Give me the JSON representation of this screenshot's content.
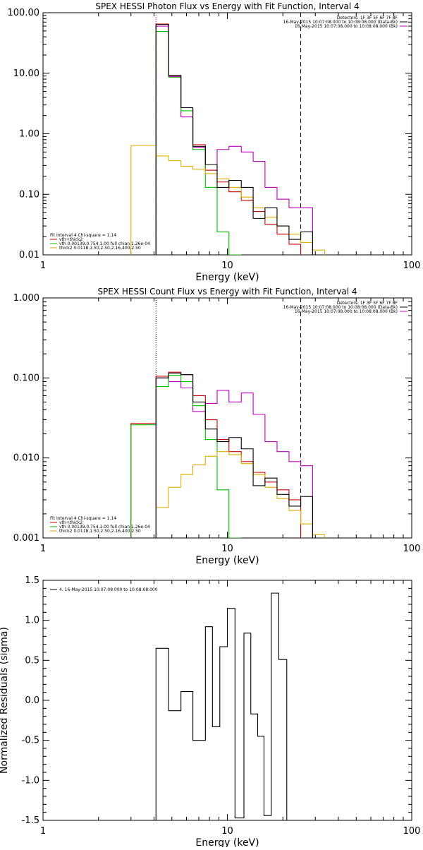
{
  "chart_data": [
    {
      "type": "line",
      "title": "SPEX HESSI Photon Flux vs Energy with Fit Function, Interval 4",
      "xlabel": "Energy (keV)",
      "ylabel": "",
      "xscale": "log",
      "yscale": "log",
      "xlim": [
        1,
        100
      ],
      "ylim": [
        0.01,
        100
      ],
      "xticks": [
        "1",
        "10",
        "100"
      ],
      "yticks": [
        "0.01",
        "0.10",
        "1.00",
        "10.00",
        "100.00"
      ],
      "ytick_values": [
        0.01,
        0.1,
        1,
        10,
        100
      ],
      "vlines": [
        {
          "x": 4.1,
          "style": "dotted",
          "color": "#c000c0"
        },
        {
          "x": 25.0,
          "style": "dashed",
          "color": "#000000"
        }
      ],
      "legend_top": [
        {
          "text": "Detectors: 1F 3F 5F 6F 7F 8F",
          "color": ""
        },
        {
          "text": "16-May-2015 10:07:08.000 to 10:08:08.000 (Data-Bk)",
          "color": "#000000"
        },
        {
          "text": "16-May-2015 10:07:08.000 to 10:08:08.000 (Bk)",
          "color": "#c000c0"
        }
      ],
      "legend_bottom": [
        {
          "text": "Fit Interval 4   Chi-square = 1.14",
          "color": ""
        },
        {
          "text": "vth+thick2",
          "color": "#d00000"
        },
        {
          "text": "vth 0.00139,0.754,1.00  full chian 1.26e-04",
          "color": "#00c000"
        },
        {
          "text": "thick2 0.0118,1.50,2.50,2.16,400,2.50",
          "color": "#d4a800"
        }
      ],
      "edges": [
        3.0,
        4.1,
        4.8,
        5.6,
        6.5,
        7.6,
        8.8,
        10.2,
        11.9,
        13.8,
        16.0,
        18.6,
        21.6,
        25.0,
        29.0,
        33.7,
        39.1
      ],
      "series": [
        {
          "name": "",
          "color": "#c000c0",
          "values": [
            null,
            60,
            8.8,
            1.9,
            0.6,
            0.25,
            0.55,
            0.62,
            0.5,
            0.35,
            0.13,
            0.083,
            0.06,
            0.06,
            null,
            null
          ]
        },
        {
          "name": "",
          "color": "#d00000",
          "values": [
            null,
            65,
            9.1,
            2.7,
            0.66,
            0.25,
            0.16,
            0.11,
            0.08,
            0.052,
            0.032,
            0.022,
            0.015,
            null,
            null,
            null
          ]
        },
        {
          "name": "",
          "color": "#00c000",
          "values": [
            null,
            49,
            8.6,
            2.4,
            0.55,
            0.13,
            0.024,
            0.01,
            null,
            null,
            null,
            null,
            null,
            null,
            null,
            null
          ]
        },
        {
          "name": "",
          "color": "#e0b000",
          "values": [
            0.64,
            0.43,
            0.36,
            0.29,
            0.26,
            0.22,
            0.18,
            0.13,
            0.09,
            0.06,
            0.042,
            0.03,
            0.022,
            0.016,
            0.012,
            null
          ]
        },
        {
          "name": "",
          "color": "#000000",
          "values": [
            null,
            64,
            9.2,
            2.7,
            0.62,
            0.31,
            0.13,
            0.17,
            0.13,
            0.04,
            0.06,
            0.03,
            0.018,
            0.024,
            null,
            null
          ]
        }
      ]
    },
    {
      "type": "line",
      "title": "SPEX HESSI Count Flux vs Energy with Fit Function, Interval 4",
      "xlabel": "Energy (keV)",
      "ylabel": "",
      "xscale": "log",
      "yscale": "log",
      "xlim": [
        1,
        100
      ],
      "ylim": [
        0.001,
        1
      ],
      "xticks": [
        "1",
        "10",
        "100"
      ],
      "yticks": [
        "0.001",
        "0.010",
        "0.100",
        "1.000"
      ],
      "ytick_values": [
        0.001,
        0.01,
        0.1,
        1
      ],
      "vlines": [
        {
          "x": 4.1,
          "style": "dotted",
          "color": "#000000"
        },
        {
          "x": 25.0,
          "style": "dashed",
          "color": "#000000"
        }
      ],
      "legend_top": [
        {
          "text": "Detectors: 1F 3F 5F 6F 7F 8F",
          "color": ""
        },
        {
          "text": "16-May-2015 10:07:08.000 to 10:08:08.000 (Data-Bk)",
          "color": "#000000"
        },
        {
          "text": "16-May-2015 10:07:08.000 to 10:08:08.000 (Bk)",
          "color": "#c000c0"
        }
      ],
      "legend_bottom": [
        {
          "text": "Fit Interval 4   Chi-square = 1.14",
          "color": ""
        },
        {
          "text": "vth+thick2",
          "color": "#d00000"
        },
        {
          "text": "vth 0.00139,0.754,1.00  full chian 1.26e-04",
          "color": "#00c000"
        },
        {
          "text": "thick2 0.0118,1.50,2.50,2.16,400,2.50",
          "color": "#d4a800"
        }
      ],
      "edges": [
        3.0,
        4.1,
        4.8,
        5.6,
        6.5,
        7.6,
        8.8,
        10.2,
        11.9,
        13.8,
        16.0,
        18.6,
        21.6,
        25.0,
        29.0,
        33.7,
        39.1
      ],
      "series": [
        {
          "name": "",
          "color": "#c000c0",
          "values": [
            null,
            0.1,
            0.09,
            0.075,
            0.038,
            0.048,
            0.07,
            0.05,
            0.065,
            0.035,
            0.016,
            0.012,
            0.009,
            0.008,
            null,
            null
          ]
        },
        {
          "name": "",
          "color": "#d00000",
          "values": [
            0.027,
            0.105,
            0.118,
            0.11,
            0.06,
            0.03,
            0.017,
            0.012,
            0.009,
            0.0066,
            0.005,
            0.004,
            0.003,
            null,
            null,
            null
          ]
        },
        {
          "name": "",
          "color": "#00c000",
          "values": [
            0.026,
            0.078,
            0.108,
            0.09,
            0.045,
            0.017,
            0.004,
            0.001,
            null,
            null,
            null,
            null,
            null,
            null,
            null,
            null
          ]
        },
        {
          "name": "",
          "color": "#e0b000",
          "values": [
            null,
            0.0024,
            0.0043,
            0.0062,
            0.0082,
            0.0105,
            0.012,
            0.011,
            0.0085,
            0.0062,
            0.0043,
            0.0031,
            0.0022,
            0.0015,
            0.0011,
            null
          ]
        },
        {
          "name": "",
          "color": "#000000",
          "values": [
            null,
            0.1,
            0.115,
            0.11,
            0.05,
            0.023,
            0.016,
            0.018,
            0.013,
            0.0045,
            0.0056,
            0.0035,
            0.0025,
            0.0033,
            null,
            null
          ]
        }
      ]
    },
    {
      "type": "line",
      "title": "",
      "xlabel": "Energy (keV)",
      "ylabel": "Normalized Residuals (sigma)",
      "xscale": "log",
      "yscale": "linear",
      "xlim": [
        1,
        100
      ],
      "ylim": [
        -1.5,
        1.5
      ],
      "xticks": [
        "1",
        "10",
        "100"
      ],
      "yticks": [
        "-1.5",
        "-1.0",
        "-0.5",
        "0.0",
        "0.5",
        "1.0",
        "1.5"
      ],
      "ytick_values": [
        -1.5,
        -1.0,
        -0.5,
        0.0,
        0.5,
        1.0,
        1.5
      ],
      "legend_top": [
        {
          "text": "4. 16-May-2015 10:07:08.000 to 10:08:08.000",
          "color": "#000000"
        }
      ],
      "edges": [
        4.1,
        4.8,
        5.6,
        6.5,
        7.6,
        8.3,
        9.1,
        10.0,
        11.0,
        12.3,
        13.4,
        14.6,
        15.8,
        17.3,
        19.0,
        21.0,
        23.0,
        25.0
      ],
      "series": [
        {
          "name": "",
          "color": "#000000",
          "values": [
            0.65,
            -0.13,
            0.11,
            -0.5,
            0.92,
            -0.33,
            0.67,
            1.15,
            -1.47,
            0.84,
            -0.17,
            -0.45,
            -1.44,
            1.34,
            0.51,
            null,
            null
          ]
        }
      ]
    }
  ]
}
